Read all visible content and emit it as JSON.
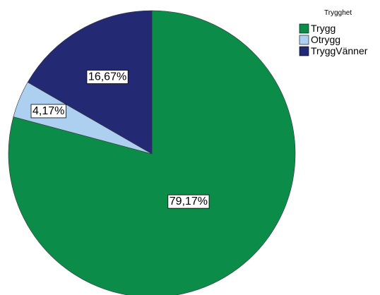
{
  "chart_data": {
    "type": "pie",
    "title": "",
    "legend_title": "Trygghet",
    "legend_position": "top-right",
    "slices": [
      {
        "label": "Trygg",
        "value": 79.17,
        "display": "79,17%",
        "color": "#0b8c48"
      },
      {
        "label": "Otrygg",
        "value": 4.17,
        "display": "4,17%",
        "color": "#aed0f0"
      },
      {
        "label": "TryggVänner",
        "value": 16.67,
        "display": "16,67%",
        "color": "#232a73"
      }
    ]
  }
}
